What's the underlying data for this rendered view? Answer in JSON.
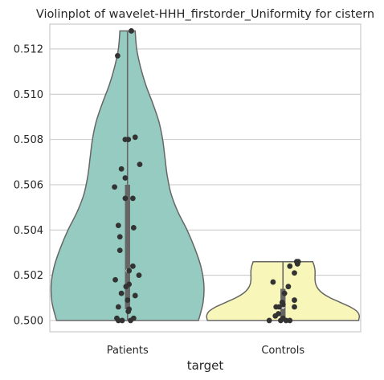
{
  "chart_data": {
    "type": "violin",
    "title": "Violinplot of wavelet-HHH_firstorder_Uniformity for cistern",
    "xlabel": "target",
    "ylabel": "",
    "categories": [
      "Patients",
      "Controls"
    ],
    "ylim": [
      0.4995,
      0.5131
    ],
    "yticks": [
      0.5,
      0.502,
      0.504,
      0.506,
      0.508,
      0.51,
      0.512
    ],
    "ytick_labels": [
      "0.500",
      "0.502",
      "0.504",
      "0.506",
      "0.508",
      "0.510",
      "0.512"
    ],
    "grid": "horizontal",
    "colors": {
      "Patients": "#96cbc1",
      "Controls": "#f8f6b9",
      "outline": "#666666",
      "points": "#333333",
      "box": "#666666",
      "grid": "#cccccc",
      "frame": "#cccccc"
    },
    "groups": [
      {
        "name": "Patients",
        "min": 0.5,
        "q1": 0.5005,
        "median": 0.5022,
        "q3": 0.506,
        "max": 0.5128,
        "density": [
          [
            0.5,
            0.93
          ],
          [
            0.5008,
            0.99
          ],
          [
            0.5016,
            1.0
          ],
          [
            0.5024,
            0.96
          ],
          [
            0.5032,
            0.88
          ],
          [
            0.504,
            0.78
          ],
          [
            0.5048,
            0.66
          ],
          [
            0.5056,
            0.57
          ],
          [
            0.5064,
            0.52
          ],
          [
            0.5072,
            0.49
          ],
          [
            0.508,
            0.46
          ],
          [
            0.5088,
            0.41
          ],
          [
            0.5096,
            0.33
          ],
          [
            0.5104,
            0.24
          ],
          [
            0.5112,
            0.17
          ],
          [
            0.512,
            0.12
          ],
          [
            0.5128,
            0.1
          ]
        ],
        "points": [
          [
            0.5128,
            0.05
          ],
          [
            0.5117,
            -0.13
          ],
          [
            0.5081,
            0.1
          ],
          [
            0.508,
            -0.03
          ],
          [
            0.508,
            0.01
          ],
          [
            0.5069,
            0.16
          ],
          [
            0.5067,
            -0.08
          ],
          [
            0.5063,
            -0.03
          ],
          [
            0.5059,
            -0.17
          ],
          [
            0.5054,
            0.07
          ],
          [
            0.5054,
            -0.03
          ],
          [
            0.5042,
            -0.12
          ],
          [
            0.5041,
            0.08
          ],
          [
            0.5037,
            -0.1
          ],
          [
            0.5031,
            -0.1
          ],
          [
            0.5024,
            0.07
          ],
          [
            0.5022,
            0.02
          ],
          [
            0.502,
            0.15
          ],
          [
            0.5018,
            -0.16
          ],
          [
            0.5016,
            0.02
          ],
          [
            0.5015,
            -0.02
          ],
          [
            0.5012,
            -0.08
          ],
          [
            0.5011,
            0.1
          ],
          [
            0.5009,
            0.0
          ],
          [
            0.5006,
            -0.12
          ],
          [
            0.5005,
            0.02
          ],
          [
            0.5004,
            0.01
          ],
          [
            0.5001,
            -0.14
          ],
          [
            0.5001,
            0.08
          ],
          [
            0.5,
            -0.12
          ],
          [
            0.5,
            -0.07
          ],
          [
            0.5,
            0.04
          ]
        ]
      },
      {
        "name": "Controls",
        "min": 0.5,
        "q1": 0.5001,
        "median": 0.5006,
        "q3": 0.5014,
        "max": 0.5026,
        "density": [
          [
            0.5,
            0.99
          ],
          [
            0.5002,
            1.0
          ],
          [
            0.5004,
            0.97
          ],
          [
            0.5006,
            0.88
          ],
          [
            0.5008,
            0.75
          ],
          [
            0.501,
            0.62
          ],
          [
            0.5012,
            0.52
          ],
          [
            0.5014,
            0.46
          ],
          [
            0.5016,
            0.43
          ],
          [
            0.5018,
            0.42
          ],
          [
            0.502,
            0.42
          ],
          [
            0.5022,
            0.42
          ],
          [
            0.5024,
            0.41
          ],
          [
            0.5026,
            0.39
          ]
        ],
        "points": [
          [
            0.5026,
            0.18
          ],
          [
            0.5026,
            0.2
          ],
          [
            0.5025,
            0.19
          ],
          [
            0.5024,
            0.09
          ],
          [
            0.5021,
            0.15
          ],
          [
            0.5017,
            -0.13
          ],
          [
            0.5015,
            0.07
          ],
          [
            0.5012,
            0.02
          ],
          [
            0.5009,
            0.15
          ],
          [
            0.5008,
            -0.01
          ],
          [
            0.5007,
            0.0
          ],
          [
            0.5006,
            -0.05
          ],
          [
            0.5006,
            -0.09
          ],
          [
            0.5006,
            0.15
          ],
          [
            0.5003,
            -0.06
          ],
          [
            0.5002,
            -0.1
          ],
          [
            0.5001,
            0.0
          ],
          [
            0.5,
            -0.18
          ],
          [
            0.5,
            -0.03
          ],
          [
            0.5,
            0.04
          ],
          [
            0.5,
            0.09
          ]
        ]
      }
    ]
  }
}
